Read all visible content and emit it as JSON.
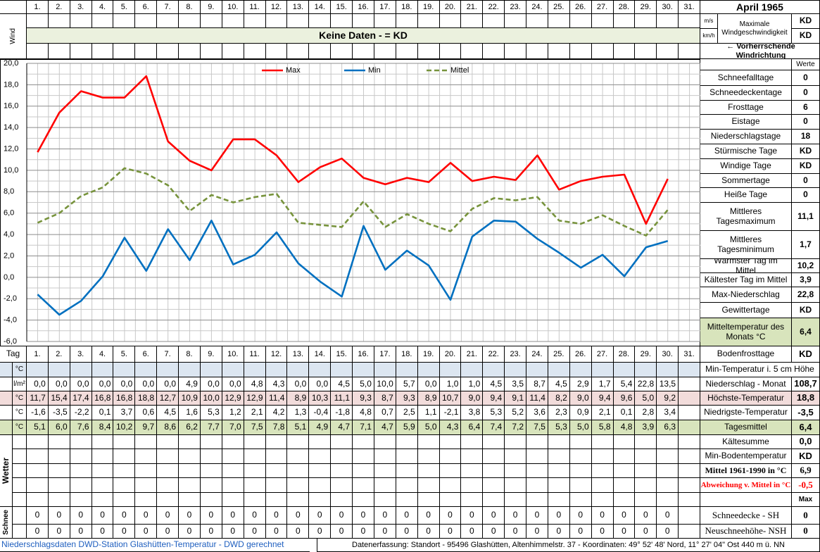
{
  "header": {
    "title": "April 1965",
    "days": [
      "1.",
      "2.",
      "3.",
      "4.",
      "5.",
      "6.",
      "7.",
      "8.",
      "9.",
      "10.",
      "11.",
      "12.",
      "13.",
      "14.",
      "15.",
      "16.",
      "17.",
      "18.",
      "19.",
      "20.",
      "21.",
      "22.",
      "23.",
      "24.",
      "25.",
      "26.",
      "27.",
      "28.",
      "29.",
      "30.",
      "31."
    ]
  },
  "wind": {
    "label": "Wind",
    "unit_ms": "m/s",
    "unit_kmh": "km/h",
    "max_label": "Maximale Windgeschwindigkeit",
    "max_ms": "KD",
    "max_kmh": "KD",
    "no_data": "Keine Daten -  = KD",
    "direction": "← Vorherrschende Windrichtung"
  },
  "chart_data": {
    "type": "line",
    "x": [
      1,
      2,
      3,
      4,
      5,
      6,
      7,
      8,
      9,
      10,
      11,
      12,
      13,
      14,
      15,
      16,
      17,
      18,
      19,
      20,
      21,
      22,
      23,
      24,
      25,
      26,
      27,
      28,
      29,
      30
    ],
    "xlim": [
      0.5,
      31.5
    ],
    "ylim": [
      -6,
      20
    ],
    "yticks": [
      {
        "value": 20,
        "label": "20,0"
      },
      {
        "value": 18,
        "label": "18,0"
      },
      {
        "value": 16,
        "label": "16,0"
      },
      {
        "value": 14,
        "label": "14,0"
      },
      {
        "value": 12,
        "label": "12,0"
      },
      {
        "value": 10,
        "label": "10,0"
      },
      {
        "value": 8,
        "label": "8,0"
      },
      {
        "value": 6,
        "label": "6,0"
      },
      {
        "value": 4,
        "label": "4,0"
      },
      {
        "value": 2,
        "label": "2,0"
      },
      {
        "value": 0,
        "label": "0,0"
      },
      {
        "value": -2,
        "label": "-2,0"
      },
      {
        "value": -4,
        "label": "-4,0"
      },
      {
        "value": -6,
        "label": "-6,0"
      }
    ],
    "grid": true,
    "legend": "top",
    "series": [
      {
        "name": "Max",
        "color": "#ff0000",
        "values": [
          11.7,
          15.4,
          17.4,
          16.8,
          16.8,
          18.8,
          12.7,
          10.9,
          10.0,
          12.9,
          12.9,
          11.4,
          8.9,
          10.3,
          11.1,
          9.3,
          8.7,
          9.3,
          8.9,
          10.7,
          9.0,
          9.4,
          9.1,
          11.4,
          8.2,
          9.0,
          9.4,
          9.6,
          5.0,
          9.2
        ]
      },
      {
        "name": "Min",
        "color": "#0070c0",
        "values": [
          -1.6,
          -3.5,
          -2.2,
          0.1,
          3.7,
          0.6,
          4.5,
          1.6,
          5.3,
          1.2,
          2.1,
          4.2,
          1.3,
          -0.4,
          -1.8,
          4.8,
          0.7,
          2.5,
          1.1,
          -2.1,
          3.8,
          5.3,
          5.2,
          3.6,
          2.3,
          0.9,
          2.1,
          0.1,
          2.8,
          3.4
        ]
      },
      {
        "name": "Mittel",
        "color": "#77933c",
        "dash": true,
        "values": [
          5.1,
          6.0,
          7.6,
          8.4,
          10.2,
          9.7,
          8.6,
          6.2,
          7.7,
          7.0,
          7.5,
          7.8,
          5.1,
          4.9,
          4.7,
          7.1,
          4.7,
          5.9,
          5.0,
          4.3,
          6.4,
          7.4,
          7.2,
          7.5,
          5.3,
          5.0,
          5.8,
          4.8,
          3.9,
          6.3
        ]
      }
    ]
  },
  "stats": {
    "header": "Werte",
    "rows": [
      [
        "Schneefalltage",
        "0"
      ],
      [
        "Schneedeckentage",
        "0"
      ],
      [
        "Frosttage",
        "6"
      ],
      [
        "Eistage",
        "0"
      ],
      [
        "Niederschlagstage",
        "18"
      ],
      [
        "Stürmische Tage",
        "KD"
      ],
      [
        "Windige Tage",
        "KD"
      ],
      [
        "Sommertage",
        "0"
      ],
      [
        "Heiße Tage",
        "0"
      ],
      [
        "Mittleres Tagesmaximum",
        "11,1"
      ],
      [
        "Mittleres Tagesminimum",
        "1,7"
      ],
      [
        "Wärmster Tag im Mittel",
        "10,2"
      ],
      [
        "Kältester Tag im Mittel",
        "3,9"
      ],
      [
        "Max-Niederschlag",
        "22,8"
      ],
      [
        "Gewittertage",
        "KD"
      ],
      [
        "Mitteltemperatur des Monats °C",
        "6,4"
      ]
    ]
  },
  "table": {
    "tag_label": "Tag",
    "rows": [
      {
        "unit": "°C"
      },
      {
        "unit": "l/m²",
        "values": [
          "0,0",
          "0,0",
          "0,0",
          "0,0",
          "0,0",
          "0,0",
          "0,0",
          "4,9",
          "0,0",
          "0,0",
          "4,8",
          "4,3",
          "0,0",
          "0,0",
          "4,5",
          "5,0",
          "10,0",
          "5,7",
          "0,0",
          "1,0",
          "1,0",
          "4,5",
          "3,5",
          "8,7",
          "4,5",
          "2,9",
          "1,7",
          "5,4",
          "22,8",
          "13,5"
        ]
      },
      {
        "unit": "°C",
        "values": [
          "11,7",
          "15,4",
          "17,4",
          "16,8",
          "16,8",
          "18,8",
          "12,7",
          "10,9",
          "10,0",
          "12,9",
          "12,9",
          "11,4",
          "8,9",
          "10,3",
          "11,1",
          "9,3",
          "8,7",
          "9,3",
          "8,9",
          "10,7",
          "9,0",
          "9,4",
          "9,1",
          "11,4",
          "8,2",
          "9,0",
          "9,4",
          "9,6",
          "5,0",
          "9,2"
        ]
      },
      {
        "unit": "°C",
        "values": [
          "-1,6",
          "-3,5",
          "-2,2",
          "0,1",
          "3,7",
          "0,6",
          "4,5",
          "1,6",
          "5,3",
          "1,2",
          "2,1",
          "4,2",
          "1,3",
          "-0,4",
          "-1,8",
          "4,8",
          "0,7",
          "2,5",
          "1,1",
          "-2,1",
          "3,8",
          "5,3",
          "5,2",
          "3,6",
          "2,3",
          "0,9",
          "2,1",
          "0,1",
          "2,8",
          "3,4"
        ]
      },
      {
        "unit": "°C",
        "values": [
          "5,1",
          "6,0",
          "7,6",
          "8,4",
          "10,2",
          "9,7",
          "8,6",
          "6,2",
          "7,7",
          "7,0",
          "7,5",
          "7,8",
          "5,1",
          "4,9",
          "4,7",
          "7,1",
          "4,7",
          "5,9",
          "5,0",
          "4,3",
          "6,4",
          "7,4",
          "7,2",
          "7,5",
          "5,3",
          "5,0",
          "5,8",
          "4,8",
          "3,9",
          "6,3"
        ]
      }
    ],
    "weather_label": "Wetter",
    "snow_label": "Schnee",
    "snow_rows": [
      [
        0,
        0,
        0,
        0,
        0,
        0,
        0,
        0,
        0,
        0,
        0,
        0,
        0,
        0,
        0,
        0,
        0,
        0,
        0,
        0,
        0,
        0,
        0,
        0,
        0,
        0,
        0,
        0,
        0,
        0
      ],
      [
        0,
        0,
        0,
        0,
        0,
        0,
        0,
        0,
        0,
        0,
        0,
        0,
        0,
        0,
        0,
        0,
        0,
        0,
        0,
        0,
        0,
        0,
        0,
        0,
        0,
        0,
        0,
        0,
        0,
        0
      ]
    ]
  },
  "side": {
    "rows": [
      {
        "label": "Bodenfrosttage",
        "value": "KD"
      },
      {
        "label": "Min-Temperatur i. 5 cm Höhe"
      },
      {
        "label": "Niederschlag - Monat",
        "value": "108,7"
      },
      {
        "label": "Höchste-Temperatur",
        "value": "18,8"
      },
      {
        "label": "Niedrigste-Temperatur",
        "value": "-3,5"
      },
      {
        "label": "Tagesmittel",
        "value": "6,4"
      },
      {
        "label": "Kältesumme",
        "value": "0,0"
      },
      {
        "label": "Min-Bodentemperatur",
        "value": "KD"
      },
      {
        "label": "Mittel 1961-1990 in °C",
        "value": "6,9"
      },
      {
        "label": "Abweichung v. Mittel in °C",
        "value": "-0,5"
      },
      {
        "value": "Max"
      },
      {
        "label": "Schneedecke -  SH",
        "value": "0"
      },
      {
        "label": "Neuschneehöhe- NSH",
        "value": "0"
      }
    ]
  },
  "footer": {
    "left": "Niederschlagsdaten DWD-Station Glashütten-Temperatur -  DWD gerechnet",
    "right": "Datenerfassung: Standort -  95496 Glashütten, Altenhimmelstr. 37 - Koordinaten: 49° 52' 48' Nord,  11° 27' 04\" Ost  440 m ü. NN"
  }
}
